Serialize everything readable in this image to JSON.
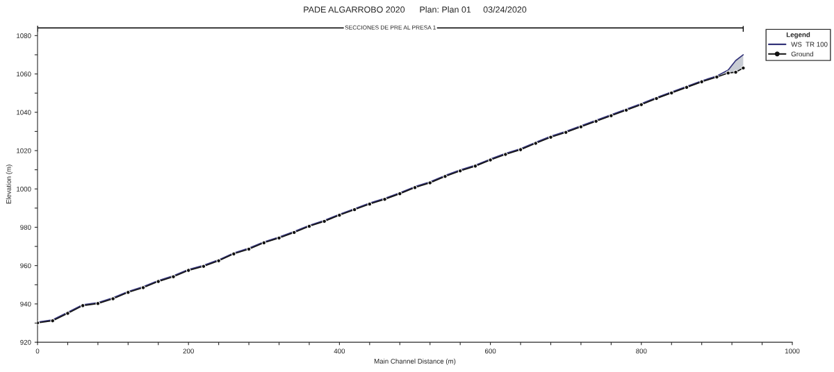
{
  "chart_data": {
    "type": "line",
    "title": "PADE ALGARROBO 2020      Plan: Plan 01     03/24/2020",
    "xlabel": "Main Channel Distance (m)",
    "ylabel": "Elevation (m)",
    "legend_title": "Legend",
    "x": [
      0,
      20,
      40,
      60,
      80,
      100,
      120,
      140,
      160,
      180,
      200,
      220,
      240,
      260,
      280,
      300,
      320,
      340,
      360,
      380,
      400,
      420,
      440,
      460,
      480,
      500,
      520,
      540,
      560,
      580,
      600,
      620,
      640,
      660,
      680,
      700,
      720,
      740,
      760,
      780,
      800,
      820,
      840,
      860,
      880,
      900,
      915,
      925,
      935
    ],
    "series": [
      {
        "name": "WS  TR 100",
        "color": "#34347a",
        "marker": "none",
        "lower": [
          930.1,
          931.2,
          935.1,
          939.1,
          940.2,
          942.7,
          946,
          948.5,
          951.7,
          954.2,
          957.5,
          959.6,
          962.5,
          966.1,
          968.6,
          971.9,
          974.4,
          977.3,
          980.5,
          983.1,
          986.3,
          989.2,
          992.1,
          994.6,
          997.5,
          1000.7,
          1003.2,
          1006.5,
          1009.4,
          1011.9,
          1015.1,
          1018,
          1020.5,
          1023.8,
          1027,
          1029.5,
          1032.4,
          1035.3,
          1038.2,
          1041.1,
          1044,
          1047.2,
          1050.1,
          1053,
          1055.9,
          1058.4,
          1060.5,
          1060.9,
          1063.1
        ],
        "upper": [
          930.5,
          931.7,
          935.6,
          939.6,
          940.7,
          943.2,
          946.5,
          949,
          952.2,
          954.7,
          958,
          960.1,
          963,
          966.6,
          969.1,
          972.4,
          974.9,
          977.8,
          981,
          983.6,
          986.8,
          989.7,
          992.6,
          995.1,
          998,
          1001.2,
          1003.7,
          1007,
          1009.9,
          1012.4,
          1015.6,
          1018.5,
          1021,
          1024.3,
          1027.5,
          1030,
          1032.9,
          1035.8,
          1038.7,
          1041.6,
          1044.5,
          1047.7,
          1050.6,
          1053.5,
          1056.4,
          1058.9,
          1062,
          1067,
          1070
        ],
        "values": [
          930.5,
          931.7,
          935.6,
          939.6,
          940.7,
          943.2,
          946.5,
          949,
          952.2,
          954.7,
          958,
          960.1,
          963,
          966.6,
          969.1,
          972.4,
          974.9,
          977.8,
          981,
          983.6,
          986.8,
          989.7,
          992.6,
          995.1,
          998,
          1001.2,
          1003.7,
          1007,
          1009.9,
          1012.4,
          1015.6,
          1018.5,
          1021,
          1024.3,
          1027.5,
          1030,
          1032.9,
          1035.8,
          1038.7,
          1041.6,
          1044.5,
          1047.7,
          1050.6,
          1053.5,
          1056.4,
          1058.9,
          1062,
          1067,
          1070
        ]
      },
      {
        "name": "Ground",
        "color": "#111111",
        "marker": "circle",
        "values": [
          930.1,
          931.2,
          935.1,
          939.1,
          940.2,
          942.7,
          946,
          948.5,
          951.7,
          954.2,
          957.5,
          959.6,
          962.5,
          966.1,
          968.6,
          971.9,
          974.4,
          977.3,
          980.5,
          983.1,
          986.3,
          989.2,
          992.1,
          994.6,
          997.5,
          1000.7,
          1003.2,
          1006.5,
          1009.4,
          1011.9,
          1015.1,
          1018,
          1020.5,
          1023.8,
          1027,
          1029.5,
          1032.4,
          1035.3,
          1038.2,
          1041.1,
          1044,
          1047.2,
          1050.1,
          1053,
          1055.9,
          1058.4,
          1060.5,
          1060.9,
          1063.1
        ]
      }
    ],
    "ref_lines": [
      {
        "axis": "y",
        "value": 1084,
        "label": "SECCIONES DE PRE AL PRESA 1",
        "color": "#000000"
      }
    ],
    "xlim": [
      0,
      1000
    ],
    "ylim": [
      920,
      1085
    ],
    "xticks": [
      0,
      {
        "value": 40,
        "label": null
      },
      {
        "value": 80,
        "label": null
      },
      {
        "value": 120,
        "label": null
      },
      {
        "value": 160,
        "label": null
      },
      200,
      {
        "value": 240,
        "label": null
      },
      {
        "value": 280,
        "label": null
      },
      {
        "value": 320,
        "label": null
      },
      {
        "value": 360,
        "label": null
      },
      400,
      {
        "value": 440,
        "label": null
      },
      {
        "value": 480,
        "label": null
      },
      {
        "value": 520,
        "label": null
      },
      {
        "value": 560,
        "label": null
      },
      600,
      {
        "value": 640,
        "label": null
      },
      {
        "value": 680,
        "label": null
      },
      {
        "value": 720,
        "label": null
      },
      {
        "value": 760,
        "label": null
      },
      800,
      {
        "value": 840,
        "label": null
      },
      {
        "value": 880,
        "label": null
      },
      {
        "value": 920,
        "label": null
      },
      {
        "value": 960,
        "label": null
      },
      1000
    ],
    "yticks": [
      920,
      {
        "value": 930,
        "label": null
      },
      940,
      {
        "value": 950,
        "label": null
      },
      960,
      {
        "value": 970,
        "label": null
      },
      980,
      {
        "value": 990,
        "label": null
      },
      1000,
      {
        "value": 1010,
        "label": null
      },
      1020,
      {
        "value": 1030,
        "label": null
      },
      1040,
      {
        "value": 1050,
        "label": null
      },
      1060,
      {
        "value": 1070,
        "label": null
      },
      1080
    ],
    "grid": false,
    "legend": "top right"
  }
}
